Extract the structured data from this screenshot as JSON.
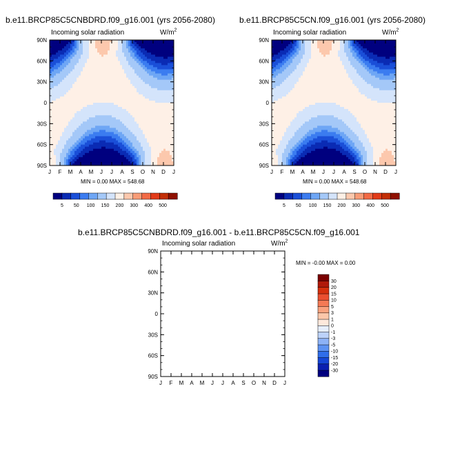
{
  "units": {
    "base": "W/m",
    "exp": "2"
  },
  "months": [
    "J",
    "F",
    "M",
    "A",
    "M",
    "J",
    "J",
    "A",
    "S",
    "O",
    "N",
    "D",
    "J"
  ],
  "lat_labels": [
    "90N",
    "60N",
    "30N",
    "0",
    "30S",
    "60S",
    "90S"
  ],
  "panel_colors": [
    "#00007f",
    "#0a2bb4",
    "#1a4fd8",
    "#3b7cf0",
    "#6ea6f5",
    "#a4c8f8",
    "#d4e4fb",
    "#fef0e6",
    "#fcc8ad",
    "#f89c77",
    "#f26a45",
    "#e23a18",
    "#c22e06",
    "#8f1000"
  ],
  "panel_levels": [
    "5",
    "50",
    "100",
    "150",
    "200",
    "300",
    "400",
    "500"
  ],
  "diff_colors": [
    "#00007f",
    "#0a1fb0",
    "#1546d6",
    "#2f6eea",
    "#5d92f2",
    "#8db2f6",
    "#bcd2fa",
    "#e6eefd",
    "#fde8dc",
    "#fcc7aa",
    "#f9a27e",
    "#f47a55",
    "#ea5030",
    "#d5300d",
    "#b0190a",
    "#7a0000"
  ],
  "diff_levels": [
    "-30",
    "-20",
    "-15",
    "-10",
    "-5",
    "-3",
    "-1",
    "0",
    "1",
    "3",
    "5",
    "10",
    "15",
    "20",
    "30"
  ],
  "chart_data": [
    {
      "type": "heatmap",
      "title": "b.e11.BRCP85C5CNBDRD.f09_g16.001 (yrs 2056-2080)",
      "subtitle": "Incoming solar radiation",
      "min_label": "MIN =   0.00 MAX = 548.68",
      "x": [
        "J",
        "F",
        "M",
        "A",
        "M",
        "J",
        "J",
        "A",
        "S",
        "O",
        "N",
        "D",
        "J"
      ],
      "y": [
        "90N",
        "60N",
        "30N",
        "0",
        "30S",
        "60S",
        "90S"
      ],
      "zlim": [
        0,
        548.68
      ],
      "levels": [
        5,
        50,
        100,
        150,
        200,
        300,
        400,
        500
      ]
    },
    {
      "type": "heatmap",
      "title": "b.e11.BRCP85C5CN.f09_g16.001 (yrs 2056-2080)",
      "subtitle": "Incoming solar radiation",
      "min_label": "MIN =   0.00 MAX = 548.68",
      "x": [
        "J",
        "F",
        "M",
        "A",
        "M",
        "J",
        "J",
        "A",
        "S",
        "O",
        "N",
        "D",
        "J"
      ],
      "y": [
        "90N",
        "60N",
        "30N",
        "0",
        "30S",
        "60S",
        "90S"
      ],
      "zlim": [
        0,
        548.68
      ],
      "levels": [
        5,
        50,
        100,
        150,
        200,
        300,
        400,
        500
      ]
    },
    {
      "type": "heatmap",
      "title": "b.e11.BRCP85C5CNBDRD.f09_g16.001 - b.e11.BRCP85C5CN.f09_g16.001",
      "subtitle": "Incoming solar radiation",
      "min_label": "MIN =  -0.00 MAX =   0.00",
      "x": [
        "J",
        "F",
        "M",
        "A",
        "M",
        "J",
        "J",
        "A",
        "S",
        "O",
        "N",
        "D",
        "J"
      ],
      "y": [
        "90N",
        "60N",
        "30N",
        "0",
        "30S",
        "60S",
        "90S"
      ],
      "zlim": [
        0,
        0
      ],
      "levels": [
        -30,
        -20,
        -15,
        -10,
        -5,
        -3,
        -1,
        0,
        1,
        3,
        5,
        10,
        15,
        20,
        30
      ]
    }
  ]
}
